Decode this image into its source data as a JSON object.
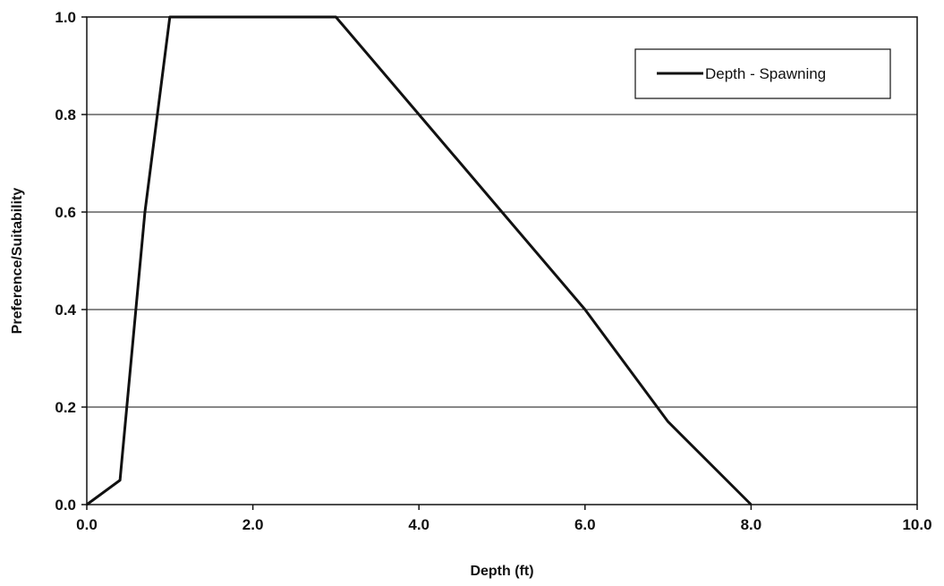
{
  "chart_data": {
    "type": "line",
    "title": "",
    "xlabel": "Depth (ft)",
    "ylabel": "Preference/Suitability",
    "xlim": [
      0,
      10
    ],
    "ylim": [
      0,
      1
    ],
    "x_ticks": [
      "0.0",
      "2.0",
      "4.0",
      "6.0",
      "8.0",
      "10.0"
    ],
    "y_ticks": [
      "0.0",
      "0.2",
      "0.4",
      "0.6",
      "0.8",
      "1.0"
    ],
    "grid": "horizontal",
    "legend_position": "top-right",
    "series": [
      {
        "name": "Depth - Spawning",
        "color": "#111111",
        "x": [
          0.0,
          0.4,
          0.7,
          1.0,
          3.0,
          4.0,
          5.0,
          6.0,
          7.0,
          8.0
        ],
        "y": [
          0.0,
          0.05,
          0.6,
          1.0,
          1.0,
          0.8,
          0.6,
          0.4,
          0.17,
          0.0
        ]
      }
    ]
  }
}
